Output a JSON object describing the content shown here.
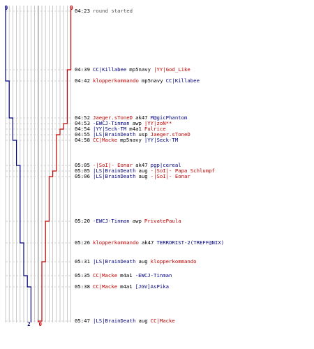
{
  "colors": {
    "blue_team": "#000080",
    "red_team": "#c00000",
    "grid": "#bdbdbd",
    "axis": "#8c8c8c",
    "dash": "#c9c9c9"
  },
  "scores": {
    "blue_start": "9",
    "red_start": "9",
    "blue_end": "2",
    "red_end": "0"
  },
  "events": [
    {
      "time": "04:23",
      "note": "round started"
    },
    {
      "time": "04:39",
      "killer": "CC|Killabee",
      "killer_team": "blue",
      "weapon": "mp5navy",
      "victim": "|YY|God_Like",
      "victim_team": "red"
    },
    {
      "time": "04:42",
      "killer": "klopperkommando",
      "killer_team": "red",
      "weapon": "mp5navy",
      "victim": "CC|Killabee",
      "victim_team": "blue"
    },
    {
      "time": "04:52",
      "killer": "Jaeger.sToneD",
      "killer_team": "red",
      "weapon": "ak47",
      "victim": "M@gicPhantom",
      "victim_team": "blue"
    },
    {
      "time": "04:53",
      "killer": "-EWCJ-Tinman",
      "killer_team": "blue",
      "weapon": "awp",
      "victim": "|YY|zoN**",
      "victim_team": "red"
    },
    {
      "time": "04:54",
      "killer": "|YY|Seck-TM",
      "killer_team": "blue",
      "weapon": "m4a1",
      "victim": "Fulrice",
      "victim_team": "red"
    },
    {
      "time": "04:55",
      "killer": "|LS|BrainDeath",
      "killer_team": "blue",
      "weapon": "usp",
      "victim": "Jaeger.sToneD",
      "victim_team": "red"
    },
    {
      "time": "04:58",
      "killer": "CC|Macke",
      "killer_team": "red",
      "weapon": "mp5navy",
      "victim": "|YY|Seck-TM",
      "victim_team": "blue"
    },
    {
      "time": "05:05",
      "killer": "-|SoI|- Eonar",
      "killer_team": "red",
      "weapon": "ak47",
      "victim": "pgp|cereal",
      "victim_team": "blue"
    },
    {
      "time": "05:05",
      "killer": "|LS|BrainDeath",
      "killer_team": "blue",
      "weapon": "aug",
      "victim": "-|SoI|- Papa Schlumpf",
      "victim_team": "red"
    },
    {
      "time": "05:06",
      "killer": "|LS|BrainDeath",
      "killer_team": "blue",
      "weapon": "aug",
      "victim": "-|SoI|- Eonar",
      "victim_team": "red"
    },
    {
      "time": "05:20",
      "killer": "-EWCJ-Tinman",
      "killer_team": "blue",
      "weapon": "awp",
      "victim": "PrivatePaula",
      "victim_team": "red"
    },
    {
      "time": "05:26",
      "killer": "klopperkommando",
      "killer_team": "red",
      "weapon": "ak47",
      "victim": "TERRORIST-2(TREFF@NIX)",
      "victim_team": "blue"
    },
    {
      "time": "05:31",
      "killer": "|LS|BrainDeath",
      "killer_team": "blue",
      "weapon": "aug",
      "victim": "klopperkommando",
      "victim_team": "red"
    },
    {
      "time": "05:35",
      "killer": "CC|Macke",
      "killer_team": "red",
      "weapon": "m4a1",
      "victim": "-EWCJ-Tinman",
      "victim_team": "blue"
    },
    {
      "time": "05:38",
      "killer": "CC|Macke",
      "killer_team": "red",
      "weapon": "m4a1",
      "victim": "[JGV]AsPika",
      "victim_team": "blue"
    },
    {
      "time": "05:47",
      "killer": "|LS|BrainDeath",
      "killer_team": "blue",
      "weapon": "aug",
      "victim": "CC|Macke",
      "victim_team": "red"
    }
  ]
}
